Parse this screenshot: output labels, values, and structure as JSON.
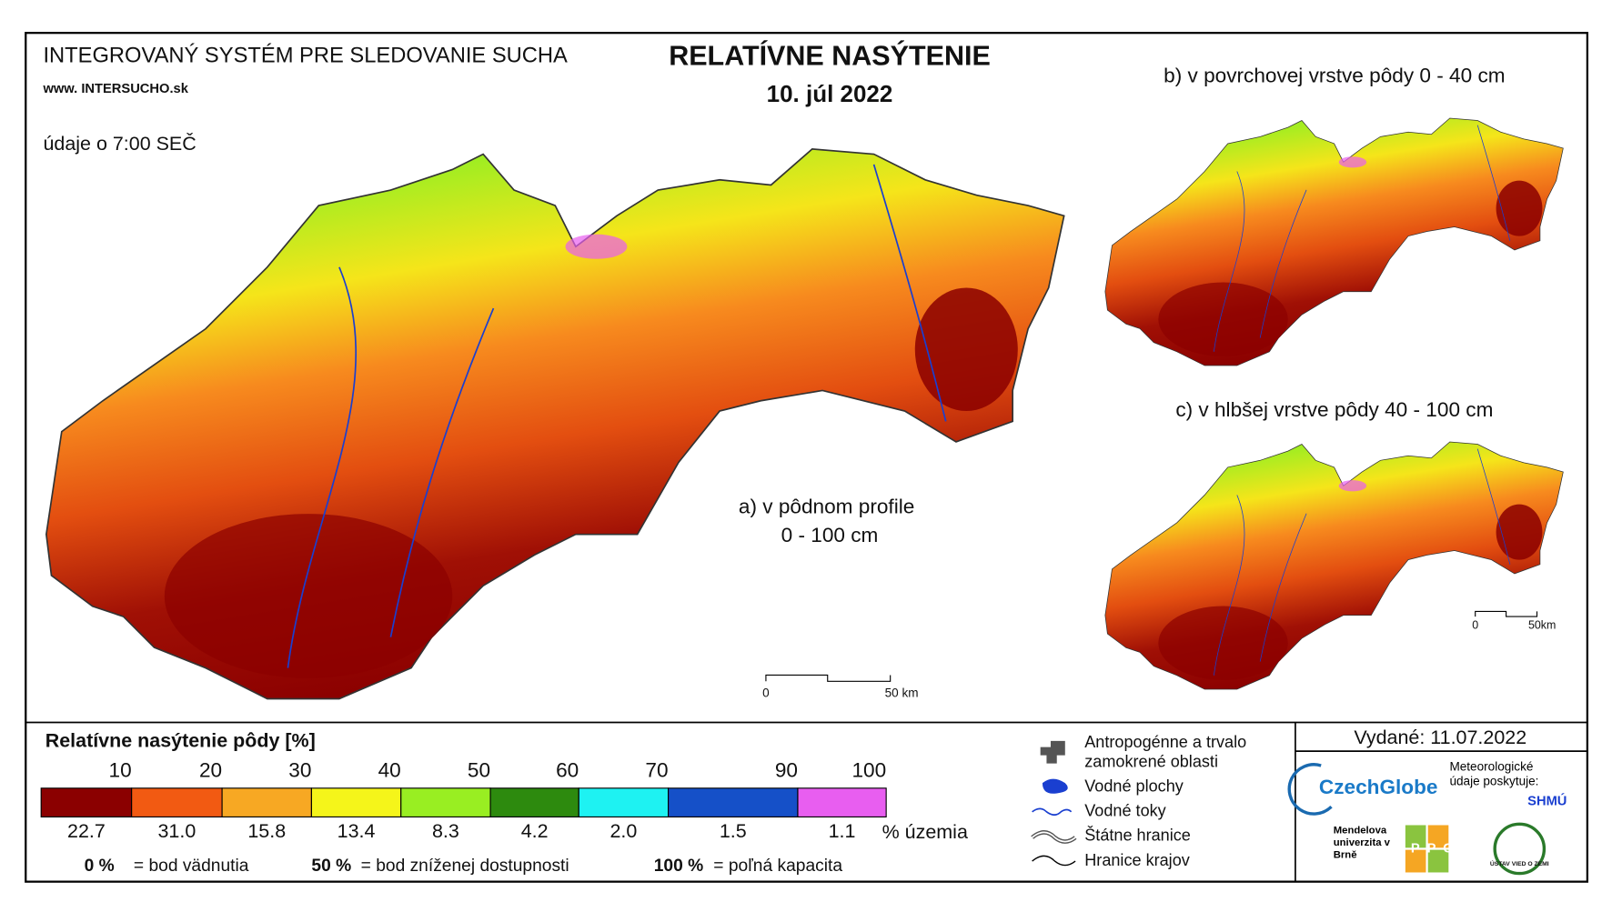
{
  "header": {
    "system": "INTEGROVANÝ SYSTÉM PRE SLEDOVANIE SUCHA",
    "website": "www. INTERSUCHO.sk",
    "time_note": "údaje o 7:00 SEČ",
    "title": "RELATÍVNE NASÝTENIE",
    "date": "10. júl 2022"
  },
  "maps": {
    "a_label": "a) v pôdnom profile",
    "a_depth": "0 - 100 cm",
    "b_label": "b) v povrchovej vrstve pôdy 0 - 40 cm",
    "c_label": "c) v hlbšej vrstve pôdy 40 - 100 cm"
  },
  "scale_bars": [
    {
      "zero": "0",
      "label": "50 km"
    },
    {
      "zero": "0",
      "label": "50km"
    }
  ],
  "legend": {
    "title": "Relatívne nasýtenie pôdy [%]",
    "breaks": [
      10,
      20,
      30,
      40,
      50,
      60,
      70,
      90,
      100
    ],
    "classes": [
      {
        "color": "#8b0000",
        "share": "22.7"
      },
      {
        "color": "#f25a12",
        "share": "31.0"
      },
      {
        "color": "#f7a823",
        "share": "15.8"
      },
      {
        "color": "#f5f51a",
        "share": "13.4"
      },
      {
        "color": "#99ee22",
        "share": "8.3"
      },
      {
        "color": "#2d8a0e",
        "share": "4.2"
      },
      {
        "color": "#1ef2f2",
        "share": "2.0"
      },
      {
        "color": "#1550c8",
        "share": "1.5"
      },
      {
        "color": "#e85ef0",
        "share": "1.1"
      }
    ],
    "share_unit": "% územia",
    "notes": [
      {
        "value": "0 %",
        "text": "= bod vädnutia"
      },
      {
        "value": "50 %",
        "text": "= bod zníženej dostupnosti"
      },
      {
        "value": "100 %",
        "text": "= poľná kapacita"
      }
    ]
  },
  "symbols": [
    "Antropogénne a trvalo zamokrené oblasti",
    "Vodné plochy",
    "Vodné toky",
    "Štátne hranice",
    "Hranice krajov"
  ],
  "issued": "Vydané: 11.07.2022",
  "logos": {
    "czechglobe": "CzechGlobe",
    "provider": "Meteorologické údaje poskytuje:",
    "shmu": "SHMÚ",
    "mendel": "Mendelova univerzita v Brně",
    "nppc": "NPPC",
    "ustav": "ÚSTAV VIED O ZEMI"
  }
}
